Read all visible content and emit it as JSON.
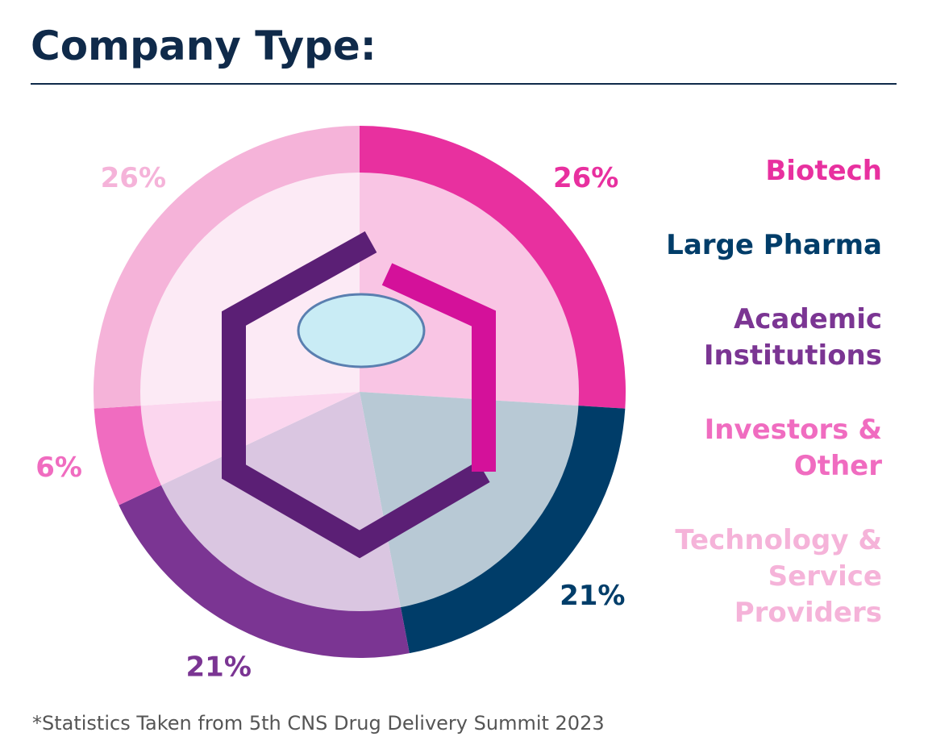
{
  "chart_data": {
    "type": "pie",
    "title": "Company Type:",
    "categories": [
      "Biotech",
      "Large Pharma",
      "Academic Institutions",
      "Investors & Other",
      "Technology & Service Providers"
    ],
    "values": [
      26,
      21,
      21,
      6,
      26
    ],
    "value_labels": [
      "26%",
      "21%",
      "21%",
      "6%",
      "26%"
    ],
    "colors": [
      "#e8309f",
      "#003d69",
      "#7b3593",
      "#f06cc0",
      "#f5b3d9"
    ],
    "note": "*Statistics Taken from 5th CNS Drug Delivery Summit 2023"
  }
}
